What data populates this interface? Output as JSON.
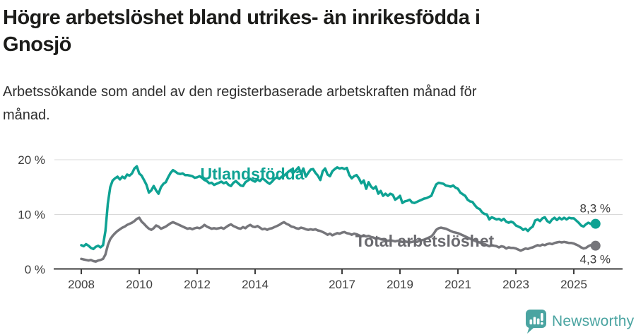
{
  "header": {
    "title_lines": [
      "Högre arbetslöshet bland utrikes- än inrikesfödda i",
      "Gnosjö"
    ],
    "subtitle_lines": [
      "Arbetssökande som andel av den registerbaserade arbetskraften månad för",
      "månad."
    ]
  },
  "footer": {
    "brand": "Newsworthy",
    "logo_icon": "bar-chart-speech-bubble",
    "brand_color": "#4aa4a1"
  },
  "chart_data": {
    "type": "line",
    "x_unit": "month",
    "x_range": [
      "2008-01",
      "2025-10"
    ],
    "x_ticks": [
      2008,
      2010,
      2012,
      2014,
      2017,
      2019,
      2021,
      2023,
      2025
    ],
    "y_ticks": [
      {
        "value": 0,
        "label": "0 %"
      },
      {
        "value": 10,
        "label": "10 %"
      },
      {
        "value": 20,
        "label": "20 %"
      }
    ],
    "ylim": [
      0,
      21.5
    ],
    "grid": "horizontal",
    "axis_text_color": "#3d3d3d",
    "grid_color": "#d9d9d9",
    "axis_color": "#3d3d3d",
    "series": [
      {
        "id": "utlandsfodda",
        "name": "Utlandsfödda",
        "color": "#0ea293",
        "end_value_label": "8,3 %",
        "values": [
          4.4,
          4.2,
          4.6,
          4.3,
          3.9,
          3.7,
          4.1,
          4.3,
          4.0,
          4.4,
          7.0,
          12.0,
          15.0,
          16.2,
          16.6,
          16.9,
          16.4,
          16.9,
          16.6,
          17.3,
          17.1,
          17.5,
          18.4,
          18.8,
          17.5,
          17.1,
          16.3,
          15.4,
          14.0,
          14.4,
          15.2,
          14.4,
          13.8,
          15.0,
          15.6,
          15.9,
          16.8,
          17.6,
          18.1,
          17.8,
          17.5,
          17.4,
          17.5,
          17.2,
          17.2,
          17.1,
          17.0,
          16.7,
          16.8,
          17.0,
          16.7,
          16.3,
          16.1,
          15.7,
          15.8,
          15.4,
          15.6,
          15.8,
          16.0,
          15.7,
          15.9,
          15.4,
          15.2,
          15.8,
          16.1,
          15.7,
          15.3,
          15.2,
          15.9,
          16.2,
          16.5,
          16.2,
          16.0,
          16.4,
          16.1,
          16.6,
          16.3,
          15.9,
          15.6,
          16.0,
          16.5,
          16.8,
          16.5,
          16.9,
          17.1,
          17.5,
          17.9,
          18.2,
          17.7,
          18.1,
          18.6,
          17.5,
          18.4,
          16.9,
          17.6,
          18.2,
          18.3,
          17.6,
          17.1,
          16.3,
          17.9,
          18.4,
          17.3,
          17.0,
          17.9,
          18.3,
          18.6,
          18.4,
          18.5,
          18.3,
          18.5,
          17.2,
          16.6,
          17.0,
          17.2,
          16.6,
          15.7,
          16.2,
          14.7,
          15.9,
          15.1,
          14.7,
          15.1,
          13.8,
          14.3,
          13.4,
          13.8,
          13.4,
          13.8,
          13.6,
          12.7,
          13.0,
          13.4,
          12.1,
          12.4,
          12.5,
          12.7,
          12.2,
          12.1,
          12.3,
          12.5,
          12.7,
          12.9,
          13.0,
          13.2,
          13.4,
          14.5,
          15.5,
          15.8,
          15.7,
          15.6,
          15.3,
          15.2,
          15.1,
          15.3,
          14.9,
          14.7,
          14.0,
          13.7,
          13.4,
          12.7,
          12.4,
          12.3,
          11.7,
          11.2,
          11.0,
          10.4,
          10.1,
          10.0,
          9.1,
          9.5,
          9.3,
          9.1,
          9.2,
          8.9,
          9.2,
          8.7,
          8.5,
          8.7,
          8.5,
          8.0,
          7.8,
          7.6,
          7.2,
          7.4,
          7.0,
          7.5,
          7.8,
          8.9,
          9.1,
          8.8,
          9.3,
          9.5,
          8.8,
          8.5,
          9.1,
          9.4,
          9.0,
          9.4,
          9.1,
          9.4,
          9.1,
          9.4,
          9.3,
          9.3,
          8.9,
          8.5,
          8.0,
          7.8,
          8.2,
          8.5,
          8.3,
          8.0,
          8.3
        ]
      },
      {
        "id": "total-arbetsloshet",
        "name": "Total arbetslöshet",
        "color": "#76767b",
        "end_value_label": "4,3 %",
        "values": [
          1.9,
          1.8,
          1.7,
          1.6,
          1.7,
          1.5,
          1.4,
          1.6,
          1.7,
          1.9,
          2.7,
          4.4,
          5.5,
          6.1,
          6.6,
          7.0,
          7.3,
          7.6,
          7.8,
          8.1,
          8.3,
          8.5,
          8.8,
          9.2,
          9.4,
          8.7,
          8.3,
          7.8,
          7.4,
          7.2,
          7.5,
          8.0,
          7.8,
          7.4,
          7.6,
          7.8,
          8.1,
          8.4,
          8.6,
          8.4,
          8.2,
          8.0,
          7.8,
          7.6,
          7.4,
          7.5,
          7.3,
          7.5,
          7.6,
          7.5,
          7.7,
          8.1,
          7.8,
          7.6,
          7.4,
          7.5,
          7.4,
          7.5,
          7.6,
          7.4,
          7.7,
          8.0,
          8.2,
          7.9,
          7.7,
          7.5,
          7.4,
          7.7,
          7.5,
          7.9,
          8.1,
          7.8,
          7.7,
          7.9,
          7.6,
          7.3,
          7.4,
          7.2,
          7.4,
          7.5,
          7.7,
          7.9,
          8.1,
          8.4,
          8.6,
          8.3,
          8.1,
          7.8,
          7.7,
          7.5,
          7.4,
          7.6,
          7.5,
          7.3,
          7.2,
          7.3,
          7.2,
          7.3,
          7.1,
          7.0,
          6.8,
          6.6,
          6.3,
          6.5,
          6.2,
          6.4,
          6.6,
          6.5,
          6.7,
          6.8,
          6.6,
          6.5,
          6.3,
          6.5,
          6.4,
          6.2,
          6.0,
          6.2,
          6.0,
          6.1,
          5.9,
          5.8,
          5.6,
          5.7,
          5.5,
          5.4,
          5.3,
          5.2,
          5.3,
          5.2,
          5.1,
          5.2,
          5.1,
          5.0,
          5.1,
          5.0,
          4.9,
          5.0,
          5.1,
          5.0,
          5.2,
          5.3,
          5.4,
          5.6,
          5.8,
          6.0,
          6.5,
          7.2,
          7.5,
          7.6,
          7.5,
          7.4,
          7.2,
          7.0,
          6.8,
          6.7,
          6.6,
          6.4,
          6.2,
          6.0,
          5.8,
          5.6,
          5.4,
          5.2,
          5.0,
          4.9,
          4.7,
          4.6,
          4.4,
          4.2,
          4.4,
          4.3,
          4.2,
          4.0,
          4.2,
          4.1,
          3.8,
          4.0,
          3.9,
          3.9,
          3.8,
          3.6,
          3.4,
          3.6,
          3.8,
          3.7,
          3.9,
          4.0,
          4.2,
          4.4,
          4.3,
          4.5,
          4.4,
          4.6,
          4.7,
          4.6,
          4.8,
          4.9,
          5.0,
          4.9,
          5.0,
          4.9,
          4.8,
          4.8,
          4.7,
          4.5,
          4.3,
          4.0,
          3.8,
          3.9,
          4.2,
          4.4,
          4.2,
          4.3
        ]
      }
    ]
  }
}
